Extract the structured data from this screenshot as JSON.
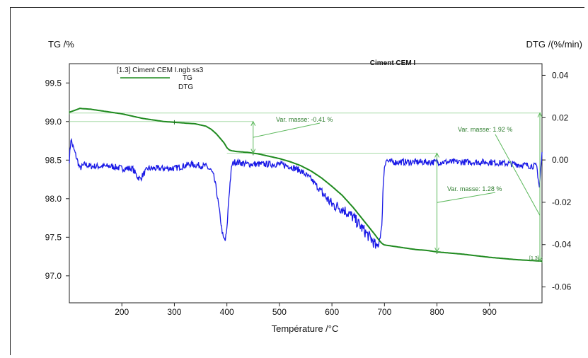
{
  "chart_data": {
    "type": "line",
    "title": "Ciment CEM I",
    "xlabel": "Température /°C",
    "ylabel_left": "TG /%",
    "ylabel_right": "DTG /(%/min)",
    "xlim": [
      100,
      1000
    ],
    "ylim_left": [
      96.65,
      99.75
    ],
    "ylim_right": [
      -0.0675,
      0.0455
    ],
    "x_ticks": [
      "200",
      "300",
      "400",
      "500",
      "600",
      "700",
      "800",
      "900"
    ],
    "y_left_ticks": [
      "99.5",
      "99.0",
      "98.5",
      "98.0",
      "97.5",
      "97.0"
    ],
    "y_right_ticks": [
      "0.04",
      "0.02",
      "0.00",
      "-0.02",
      "-0.04",
      "-0.06"
    ],
    "legend": {
      "file": "[1.3] Ciment CEM I.ngb ss3",
      "entries": [
        "TG",
        "DTG"
      ]
    },
    "colors": {
      "TG": "#1f8a1f",
      "DTG": "#1a1ae6",
      "annotation": "#5cb85c"
    },
    "series": [
      {
        "name": "TG",
        "axis": "left",
        "x": [
          100,
          120,
          140,
          160,
          180,
          200,
          220,
          240,
          260,
          280,
          300,
          320,
          340,
          360,
          370,
          380,
          390,
          395,
          400,
          405,
          410,
          420,
          440,
          460,
          480,
          500,
          520,
          540,
          560,
          580,
          600,
          620,
          640,
          660,
          680,
          690,
          695,
          700,
          720,
          740,
          760,
          780,
          800,
          850,
          900,
          950,
          1000
        ],
        "values": [
          99.12,
          99.17,
          99.16,
          99.14,
          99.12,
          99.1,
          99.07,
          99.04,
          99.02,
          99.0,
          98.99,
          98.98,
          98.97,
          98.94,
          98.9,
          98.84,
          98.76,
          98.72,
          98.66,
          98.63,
          98.62,
          98.61,
          98.6,
          98.58,
          98.55,
          98.52,
          98.48,
          98.43,
          98.36,
          98.27,
          98.16,
          98.04,
          97.89,
          97.72,
          97.55,
          97.46,
          97.42,
          97.4,
          97.38,
          97.36,
          97.34,
          97.33,
          97.31,
          97.28,
          97.24,
          97.21,
          97.19
        ]
      },
      {
        "name": "DTG",
        "axis": "right",
        "x": [
          100,
          103,
          106,
          110,
          115,
          120,
          125,
          130,
          140,
          160,
          180,
          200,
          220,
          230,
          235,
          240,
          250,
          270,
          300,
          330,
          360,
          370,
          375,
          380,
          385,
          390,
          393,
          397,
          400,
          403,
          407,
          410,
          415,
          420,
          440,
          460,
          480,
          500,
          520,
          540,
          560,
          580,
          600,
          620,
          640,
          660,
          670,
          680,
          685,
          690,
          695,
          697,
          700,
          703,
          710,
          750,
          800,
          850,
          900,
          950,
          990,
          995,
          1000
        ],
        "values": [
          0.0,
          0.01,
          0.007,
          0.004,
          0.0,
          -0.004,
          -0.003,
          -0.002,
          -0.003,
          -0.003,
          -0.003,
          -0.004,
          -0.004,
          -0.008,
          -0.009,
          -0.007,
          -0.004,
          -0.004,
          -0.004,
          -0.002,
          -0.003,
          -0.005,
          -0.008,
          -0.014,
          -0.023,
          -0.032,
          -0.037,
          -0.038,
          -0.033,
          -0.02,
          -0.008,
          -0.002,
          -0.001,
          -0.001,
          -0.002,
          -0.002,
          -0.002,
          -0.002,
          -0.003,
          -0.005,
          -0.009,
          -0.015,
          -0.021,
          -0.023,
          -0.027,
          -0.033,
          -0.036,
          -0.039,
          -0.042,
          -0.038,
          -0.032,
          -0.015,
          -0.003,
          0.0,
          -0.001,
          -0.001,
          -0.001,
          -0.001,
          -0.001,
          -0.002,
          -0.003,
          -0.013,
          0.003
        ]
      }
    ],
    "annotations": [
      {
        "label": "Var. masse: -0.41 %",
        "x": 450,
        "from": 99.0,
        "to": 98.59
      },
      {
        "label": "Var. masse: 1.28 %",
        "x": 800,
        "from": 98.59,
        "to": 97.31
      },
      {
        "label": "Var. masse: 1.92 %",
        "x": 1000,
        "from": 99.11,
        "to": 97.19
      }
    ],
    "corner_tag": "[1.3]",
    "grid": false
  }
}
